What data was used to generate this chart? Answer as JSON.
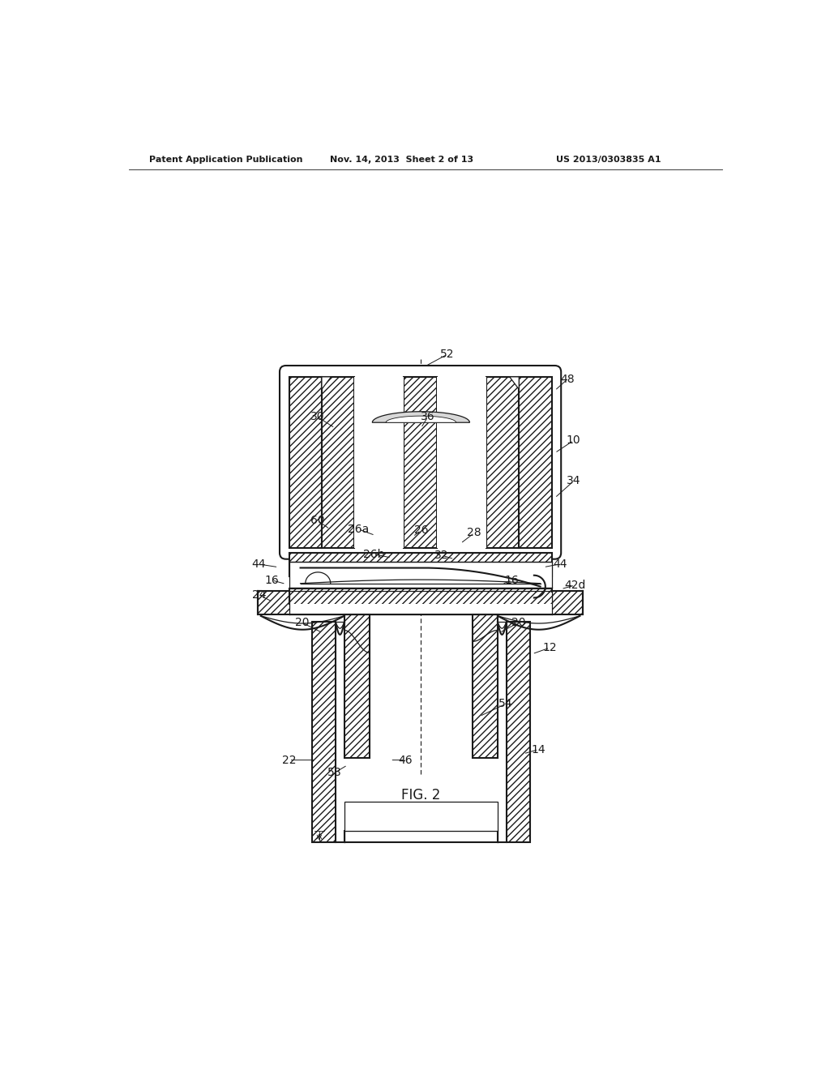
{
  "bg": "#ffffff",
  "lc": "#1a1a1a",
  "header1": "Patent Application Publication",
  "header2": "Nov. 14, 2013  Sheet 2 of 13",
  "header3": "US 2013/0303835 A1",
  "fig_label": "FIG. 2",
  "lfs": 10,
  "hfs": 8,
  "cfs": 12
}
